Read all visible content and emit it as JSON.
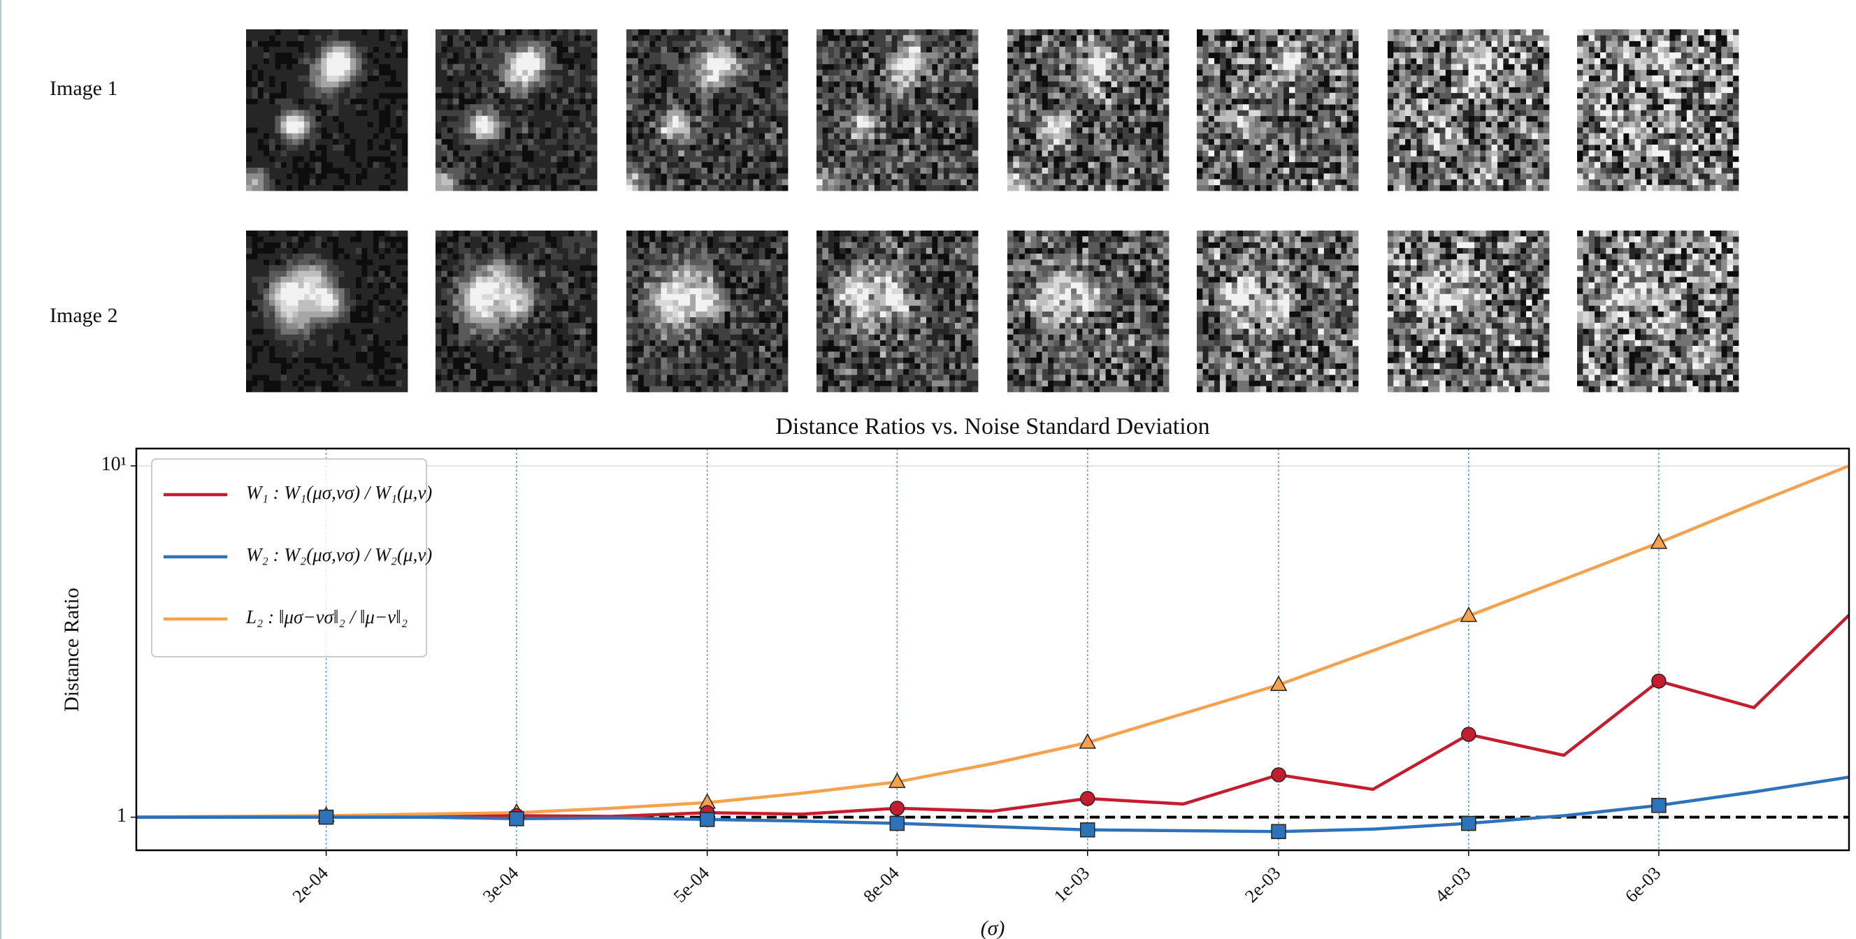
{
  "image_rows": [
    "Image 1",
    "Image 2"
  ],
  "chart_data": {
    "type": "line",
    "title": "Distance Ratios vs. Noise Standard Deviation",
    "ylabel": "Distance Ratio",
    "xlabel": "(σ)",
    "xscale": "log",
    "yscale": "log",
    "x": [
      0.000124,
      0.000158,
      0.0002,
      0.000254,
      0.000323,
      0.00041,
      0.000522,
      0.000663,
      0.000842,
      0.00107,
      0.00136,
      0.00173,
      0.0022,
      0.00279,
      0.00355,
      0.00451,
      0.00573,
      0.00728,
      0.00925
    ],
    "series": [
      {
        "name": "W₁ : W₁(μσ,νσ) / W₁(μ,ν)",
        "color": "#c41e2e",
        "marker": "o",
        "values": [
          1.0,
          1.0,
          1.0,
          1.0,
          1.01,
          1.005,
          1.03,
          1.02,
          1.06,
          1.04,
          1.13,
          1.09,
          1.32,
          1.2,
          1.72,
          1.5,
          2.44,
          2.05,
          3.76
        ]
      },
      {
        "name": "W₂ : W₂(μσ,νσ) / W₂(μ,ν)",
        "color": "#2e73b9",
        "marker": "s",
        "values": [
          1.0,
          1.0,
          1.0,
          1.0,
          0.99,
          0.995,
          0.985,
          0.975,
          0.96,
          0.94,
          0.92,
          0.915,
          0.91,
          0.925,
          0.96,
          1.01,
          1.08,
          1.18,
          1.3
        ]
      },
      {
        "name": "L₂ : ‖μσ−νσ‖₂ / ‖μ−ν‖₂",
        "color": "#f5a24f",
        "marker": "^",
        "values": [
          1.0,
          1.005,
          1.01,
          1.02,
          1.03,
          1.06,
          1.1,
          1.17,
          1.26,
          1.42,
          1.63,
          1.97,
          2.38,
          2.98,
          3.74,
          4.75,
          6.04,
          7.8,
          10.0
        ]
      }
    ],
    "xlim": [
      0.000124,
      0.00925
    ],
    "xticks": [
      {
        "value": 0.0002,
        "label": "2e-04"
      },
      {
        "value": 0.000323,
        "label": "3e-04"
      },
      {
        "value": 0.000522,
        "label": "5e-04"
      },
      {
        "value": 0.000842,
        "label": "8e-04"
      },
      {
        "value": 0.00136,
        "label": "1e-03"
      },
      {
        "value": 0.0022,
        "label": "2e-03"
      },
      {
        "value": 0.00355,
        "label": "4e-03"
      },
      {
        "value": 0.00573,
        "label": "6e-03"
      }
    ],
    "ylim": [
      0.805,
      11.2
    ],
    "yticks": [
      1,
      {
        "value": 10,
        "label": "10¹"
      }
    ],
    "hline": 1,
    "grid": true,
    "legend": "upper left"
  }
}
